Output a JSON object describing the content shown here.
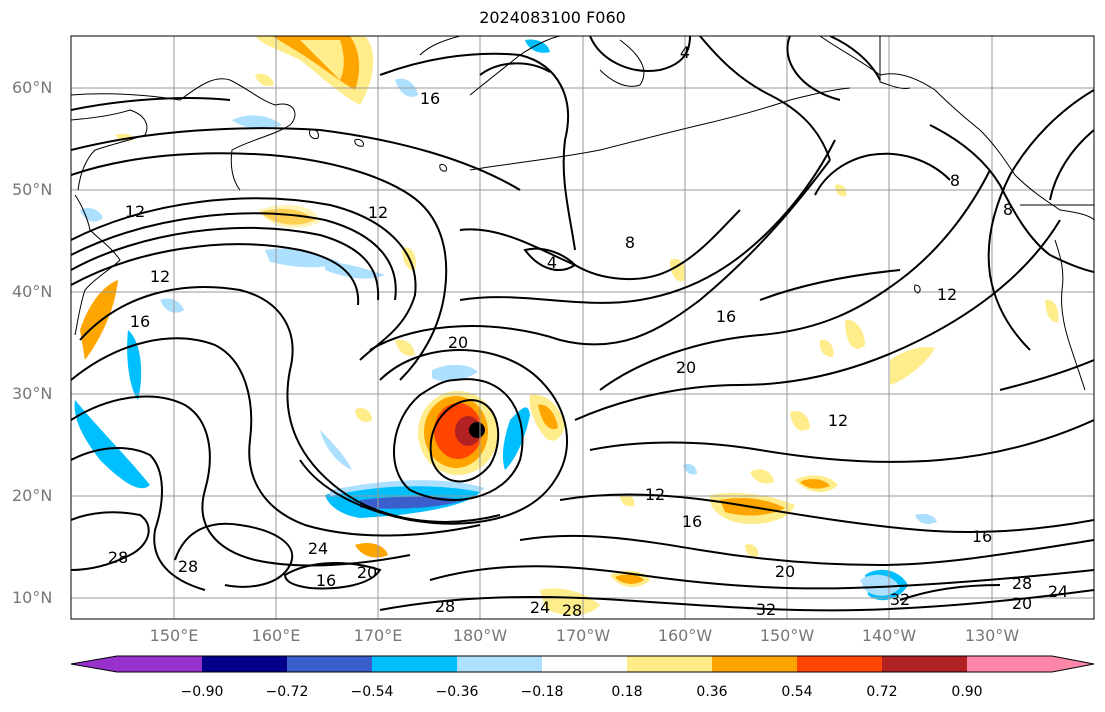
{
  "title": "2024083100 F060",
  "map": {
    "extent": {
      "lon_min": 140,
      "lon_max": 240,
      "lat_min": 8,
      "lat_max": 65
    },
    "latitude_labels": [
      "10°N",
      "20°N",
      "30°N",
      "40°N",
      "50°N",
      "60°N"
    ],
    "longitude_labels": [
      "150°E",
      "160°E",
      "170°E",
      "180°W",
      "170°W",
      "160°W",
      "150°W",
      "140°W",
      "130°W"
    ],
    "contour_labels": [
      "16",
      "12",
      "12",
      "4",
      "8",
      "8",
      "8",
      "12",
      "16",
      "20",
      "20",
      "16",
      "12",
      "12",
      "12",
      "16",
      "16",
      "20",
      "24",
      "28",
      "28",
      "16",
      "20",
      "24",
      "28",
      "28",
      "20",
      "24",
      "32",
      "32",
      "28",
      "4"
    ],
    "colors": {
      "frame": "#000000",
      "grid": "#999999",
      "coast": "#000000"
    }
  },
  "colorbar": {
    "ticks": [
      "−0.90",
      "−0.72",
      "−0.54",
      "−0.36",
      "−0.18",
      "0.18",
      "0.36",
      "0.54",
      "0.72",
      "0.90"
    ],
    "colors": [
      "#9932CC",
      "#00008B",
      "#3A5FCD",
      "#00BFFF",
      "#ADDFFF",
      "#FFFFFF",
      "#FFEC8B",
      "#FFA500",
      "#FF4500",
      "#B22222",
      "#FF88AA"
    ]
  }
}
